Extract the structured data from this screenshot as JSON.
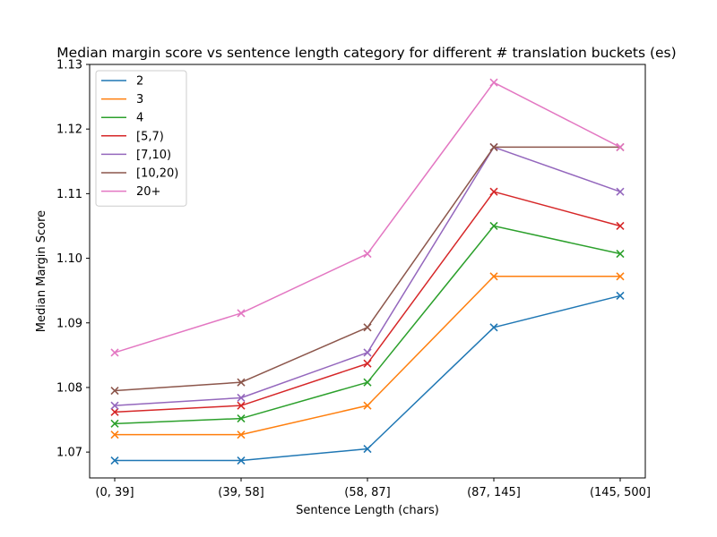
{
  "chart_data": {
    "type": "line",
    "title": "Median margin score vs sentence length category for different # translation buckets (es)",
    "xlabel": "Sentence Length (chars)",
    "ylabel": "Median Margin Score",
    "categories": [
      "(0, 39]",
      "(39, 58]",
      "(58, 87]",
      "(87, 145]",
      "(145, 500]"
    ],
    "ylim": [
      1.066,
      1.13
    ],
    "yticks": [
      "1.07",
      "1.08",
      "1.09",
      "1.10",
      "1.11",
      "1.12",
      "1.13"
    ],
    "ytick_values": [
      1.07,
      1.08,
      1.09,
      1.1,
      1.11,
      1.12,
      1.13
    ],
    "grid": false,
    "legend_position": "top-left",
    "marker": "x",
    "series": [
      {
        "name": "2",
        "color": "#1f77b4",
        "values": [
          1.0687,
          1.0687,
          1.0705,
          1.0893,
          1.0942
        ]
      },
      {
        "name": "3",
        "color": "#ff7f0e",
        "values": [
          1.0727,
          1.0727,
          1.0772,
          1.0972,
          1.0972
        ]
      },
      {
        "name": "4",
        "color": "#2ca02c",
        "values": [
          1.0744,
          1.0752,
          1.0808,
          1.105,
          1.1007
        ]
      },
      {
        "name": "[5,7)",
        "color": "#d62728",
        "values": [
          1.0762,
          1.0772,
          1.0837,
          1.1103,
          1.105
        ]
      },
      {
        "name": "[7,10)",
        "color": "#9467bd",
        "values": [
          1.0772,
          1.0784,
          1.0854,
          1.1172,
          1.1103
        ]
      },
      {
        "name": "[10,20)",
        "color": "#8c564b",
        "values": [
          1.0795,
          1.0808,
          1.0893,
          1.1172,
          1.1172
        ]
      },
      {
        "name": "20+",
        "color": "#e377c2",
        "values": [
          1.0854,
          1.0915,
          1.1007,
          1.1272,
          1.1172
        ]
      }
    ]
  }
}
